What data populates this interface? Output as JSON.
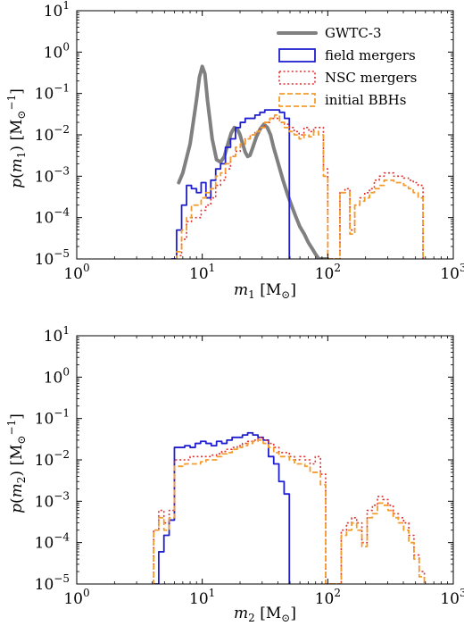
{
  "chart_data": [
    {
      "type": "line",
      "xlabel": "m_1 [M_⊙]",
      "ylabel": "p(m_1) [M_⊙^−1]",
      "xscale": "log",
      "yscale": "log",
      "xlim": [
        1,
        1000
      ],
      "ylim": [
        1e-05,
        10
      ],
      "x_ticks": [
        {
          "v": 1,
          "base": "10",
          "exp": "0"
        },
        {
          "v": 10,
          "base": "10",
          "exp": "1"
        },
        {
          "v": 100,
          "base": "10",
          "exp": "2"
        },
        {
          "v": 1000,
          "base": "10",
          "exp": "3"
        }
      ],
      "y_ticks": [
        {
          "v": 1e-05,
          "base": "10",
          "exp": "−5"
        },
        {
          "v": 0.0001,
          "base": "10",
          "exp": "−4"
        },
        {
          "v": 0.001,
          "base": "10",
          "exp": "−3"
        },
        {
          "v": 0.01,
          "base": "10",
          "exp": "−2"
        },
        {
          "v": 0.1,
          "base": "10",
          "exp": "−1"
        },
        {
          "v": 1,
          "base": "10",
          "exp": "0"
        },
        {
          "v": 10,
          "base": "10",
          "exp": "1"
        }
      ],
      "legend_position": "top-right",
      "series": [
        {
          "name": "GWTC-3",
          "color": "#808080",
          "style": "solid-thick",
          "kind": "curve",
          "x": [
            6.5,
            7,
            8,
            9,
            9.5,
            10,
            10.5,
            11,
            12,
            13,
            14,
            15,
            16,
            17,
            18,
            19,
            20,
            21,
            22,
            23,
            24,
            25,
            27,
            29,
            31,
            33,
            35,
            37,
            40,
            44,
            48,
            52,
            56,
            60,
            65,
            70,
            75,
            80,
            85,
            90,
            95,
            100
          ],
          "y": [
            0.0007,
            0.0012,
            0.006,
            0.07,
            0.25,
            0.45,
            0.3,
            0.07,
            0.008,
            0.0025,
            0.0022,
            0.003,
            0.006,
            0.011,
            0.015,
            0.014,
            0.01,
            0.006,
            0.0038,
            0.003,
            0.0032,
            0.0045,
            0.009,
            0.014,
            0.018,
            0.015,
            0.01,
            0.005,
            0.0022,
            0.0008,
            0.00035,
            0.00018,
            0.0001,
            6e-05,
            4e-05,
            2.5e-05,
            1.8e-05,
            1.3e-05,
            1e-05,
            8.5e-06,
            8e-06,
            7.5e-06
          ]
        },
        {
          "name": "field mergers",
          "color": "#1f1fd0",
          "style": "solid",
          "kind": "step",
          "edges": [
            5.7,
            6.25,
            6.85,
            7.5,
            8.2,
            9.0,
            9.8,
            10.7,
            11.7,
            12.8,
            14.0,
            15.3,
            16.8,
            18.4,
            20.1,
            22.0,
            24.1,
            26.3,
            28.8,
            31.5,
            34.5,
            37.7,
            41.3,
            45.2,
            49.4
          ],
          "values": [
            1e-05,
            5e-05,
            0.0002,
            0.0006,
            0.0005,
            0.0004,
            0.0007,
            0.0003,
            0.0008,
            0.0015,
            0.002,
            0.005,
            0.008,
            0.015,
            0.02,
            0.025,
            0.025,
            0.03,
            0.035,
            0.04,
            0.04,
            0.04,
            0.035,
            0.025
          ]
        },
        {
          "name": "NSC mergers",
          "color": "#e03030",
          "style": "dotted",
          "kind": "step",
          "edges": [
            6.25,
            6.85,
            7.5,
            8.2,
            9.0,
            9.8,
            10.7,
            11.7,
            12.8,
            14.0,
            15.3,
            16.8,
            18.4,
            20.1,
            22.0,
            24.1,
            26.3,
            28.8,
            31.5,
            34.5,
            37.7,
            41.3,
            45.2,
            49.4,
            54.0,
            59.1,
            64.6,
            70.6,
            77.2,
            84.4,
            92.3,
            100,
            125,
            137,
            150,
            164,
            180,
            197,
            215,
            235,
            257,
            281,
            307,
            336,
            367,
            402,
            439,
            480,
            525,
            574
          ],
          "values": [
            1.2e-05,
            3e-05,
            8e-05,
            0.0001,
            0.0001,
            0.00015,
            0.0002,
            0.0003,
            0.0006,
            0.0008,
            0.0015,
            0.003,
            0.004,
            0.006,
            0.008,
            0.01,
            0.012,
            0.015,
            0.02,
            0.025,
            0.025,
            0.02,
            0.018,
            0.015,
            0.012,
            0.01,
            0.015,
            0.012,
            0.015,
            0.015,
            0.0015,
            1e-05,
            0.0004,
            0.0005,
            5e-05,
            0.0002,
            0.0003,
            0.0004,
            0.0005,
            0.0008,
            0.001,
            0.0012,
            0.0012,
            0.001,
            0.001,
            0.0009,
            0.0008,
            0.0007,
            0.0006
          ]
        },
        {
          "name": "initial BBHs",
          "color": "#f39c2c",
          "style": "dashed",
          "kind": "step",
          "edges": [
            6.25,
            6.85,
            7.5,
            8.2,
            9.0,
            9.8,
            10.7,
            11.7,
            12.8,
            14.0,
            15.3,
            16.8,
            18.4,
            20.1,
            22.0,
            24.1,
            26.3,
            28.8,
            31.5,
            34.5,
            37.7,
            41.3,
            45.2,
            49.4,
            54.0,
            59.1,
            64.6,
            70.6,
            77.2,
            84.4,
            92.3,
            100,
            125,
            137,
            150,
            164,
            180,
            197,
            215,
            235,
            257,
            281,
            307,
            336,
            367,
            402,
            439,
            480,
            525,
            574
          ],
          "values": [
            1.5e-05,
            5e-05,
            0.0001,
            0.0002,
            0.0002,
            0.0003,
            0.0004,
            0.0005,
            0.001,
            0.0012,
            0.002,
            0.003,
            0.005,
            0.006,
            0.008,
            0.01,
            0.012,
            0.015,
            0.02,
            0.025,
            0.03,
            0.02,
            0.015,
            0.012,
            0.01,
            0.008,
            0.01,
            0.009,
            0.012,
            0.01,
            0.001,
            1e-05,
            0.0004,
            0.0004,
            4e-05,
            0.0002,
            0.00025,
            0.0003,
            0.0004,
            0.0005,
            0.0006,
            0.0008,
            0.0008,
            0.0007,
            0.0007,
            0.0006,
            0.0005,
            0.0004,
            0.0003
          ]
        }
      ]
    },
    {
      "type": "line",
      "xlabel": "m_2 [M_⊙]",
      "ylabel": "p(m_2) [M_⊙^−1]",
      "xscale": "log",
      "yscale": "log",
      "xlim": [
        1,
        1000
      ],
      "ylim": [
        1e-05,
        10
      ],
      "x_ticks": [
        {
          "v": 1,
          "base": "10",
          "exp": "0"
        },
        {
          "v": 10,
          "base": "10",
          "exp": "1"
        },
        {
          "v": 100,
          "base": "10",
          "exp": "2"
        },
        {
          "v": 1000,
          "base": "10",
          "exp": "3"
        }
      ],
      "y_ticks": [
        {
          "v": 1e-05,
          "base": "10",
          "exp": "−5"
        },
        {
          "v": 0.0001,
          "base": "10",
          "exp": "−4"
        },
        {
          "v": 0.001,
          "base": "10",
          "exp": "−3"
        },
        {
          "v": 0.01,
          "base": "10",
          "exp": "−2"
        },
        {
          "v": 0.1,
          "base": "10",
          "exp": "−1"
        },
        {
          "v": 1,
          "base": "10",
          "exp": "0"
        },
        {
          "v": 10,
          "base": "10",
          "exp": "1"
        }
      ],
      "series": [
        {
          "color": "#1f1fd0",
          "style": "solid",
          "kind": "step",
          "edges": [
            4.1,
            4.5,
            4.95,
            5.45,
            6.0,
            6.6,
            7.25,
            8.0,
            8.8,
            9.7,
            10.7,
            11.8,
            13.0,
            14.3,
            15.7,
            17.3,
            19.0,
            20.9,
            23.0,
            25.3,
            27.8,
            30.6,
            33.7,
            37.1,
            40.8,
            44.9,
            49.4
          ],
          "values": [
            1e-05,
            6e-05,
            0.00015,
            0.00035,
            0.02,
            0.02,
            0.022,
            0.02,
            0.025,
            0.028,
            0.025,
            0.022,
            0.028,
            0.025,
            0.03,
            0.035,
            0.035,
            0.04,
            0.045,
            0.04,
            0.035,
            0.03,
            0.012,
            0.008,
            0.003,
            0.0015
          ]
        },
        {
          "color": "#e03030",
          "style": "dotted",
          "kind": "step",
          "edges": [
            4.1,
            4.5,
            4.95,
            5.45,
            6.0,
            6.6,
            7.25,
            8.0,
            8.8,
            9.7,
            10.7,
            11.8,
            13.0,
            14.3,
            15.7,
            17.3,
            19.0,
            20.9,
            23.0,
            25.3,
            27.8,
            30.6,
            33.7,
            37.1,
            40.8,
            44.9,
            49.4,
            54.3,
            59.7,
            65.7,
            72.3,
            79.5,
            87.5,
            96.2,
            105.8,
            116.4,
            128,
            141,
            155,
            170,
            187,
            206,
            227,
            249,
            274,
            302,
            332,
            365,
            402,
            442,
            486,
            535,
            588
          ],
          "values": [
            0.0002,
            0.0006,
            0.0003,
            0.0006,
            0.01,
            0.01,
            0.01,
            0.012,
            0.012,
            0.012,
            0.012,
            0.013,
            0.014,
            0.016,
            0.018,
            0.02,
            0.022,
            0.025,
            0.028,
            0.03,
            0.035,
            0.03,
            0.025,
            0.02,
            0.015,
            0.015,
            0.012,
            0.01,
            0.012,
            0.01,
            0.008,
            0.012,
            0.0045,
            1e-05,
            1e-05,
            1e-05,
            0.0002,
            0.0003,
            0.0004,
            0.0003,
            0.0001,
            0.0006,
            0.0008,
            0.0013,
            0.0011,
            0.0008,
            0.0005,
            0.0004,
            0.0003,
            0.00015,
            5e-05,
            2e-05
          ]
        },
        {
          "color": "#f39c2c",
          "style": "dashed",
          "kind": "step",
          "edges": [
            4.1,
            4.5,
            4.95,
            5.45,
            6.0,
            6.6,
            7.25,
            8.0,
            8.8,
            9.7,
            10.7,
            11.8,
            13.0,
            14.3,
            15.7,
            17.3,
            19.0,
            20.9,
            23.0,
            25.3,
            27.8,
            30.6,
            33.7,
            37.1,
            40.8,
            44.9,
            49.4,
            54.3,
            59.7,
            65.7,
            72.3,
            79.5,
            87.5,
            96.2,
            105.8,
            116.4,
            128,
            141,
            155,
            170,
            187,
            206,
            227,
            249,
            274,
            302,
            332,
            365,
            402,
            442,
            486,
            535,
            588
          ],
          "values": [
            0.0002,
            0.0004,
            0.0002,
            0.0004,
            0.007,
            0.007,
            0.008,
            0.008,
            0.008,
            0.009,
            0.01,
            0.01,
            0.012,
            0.014,
            0.015,
            0.018,
            0.02,
            0.022,
            0.025,
            0.028,
            0.03,
            0.025,
            0.02,
            0.015,
            0.012,
            0.012,
            0.01,
            0.008,
            0.008,
            0.007,
            0.005,
            0.005,
            0.0025,
            1e-05,
            1e-05,
            1e-05,
            0.00015,
            0.0002,
            0.0003,
            0.0002,
            8e-05,
            0.0004,
            0.0005,
            0.0009,
            0.0008,
            0.0006,
            0.0004,
            0.0003,
            0.0002,
            0.0001,
            4e-05,
            1.5e-05
          ]
        }
      ]
    }
  ]
}
